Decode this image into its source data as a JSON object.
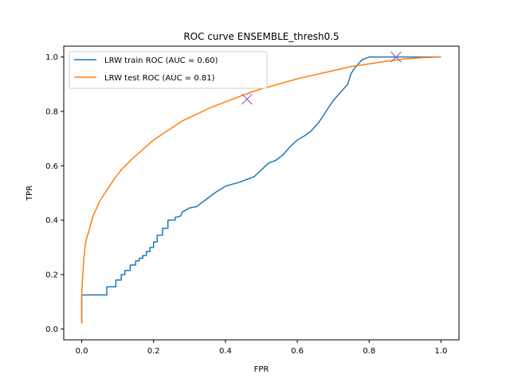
{
  "chart_data": {
    "type": "line",
    "title": "ROC curve ENSEMBLE_thresh0.5",
    "xlabel": "FPR",
    "ylabel": "TPR",
    "xlim": [
      -0.05,
      1.05
    ],
    "ylim": [
      -0.04,
      1.04
    ],
    "xticks": [
      0.0,
      0.2,
      0.4,
      0.6,
      0.8,
      1.0
    ],
    "yticks": [
      0.0,
      0.2,
      0.4,
      0.6,
      0.8,
      1.0
    ],
    "xtick_labels": [
      "0.0",
      "0.2",
      "0.4",
      "0.6",
      "0.8",
      "1.0"
    ],
    "ytick_labels": [
      "0.0",
      "0.2",
      "0.4",
      "0.6",
      "0.8",
      "1.0"
    ],
    "grid": false,
    "legend_position": "upper-left",
    "series": [
      {
        "name": "LRW train ROC (AUC = 0.60)",
        "color": "#1f77b4",
        "x": [
          0,
          0,
          0.07,
          0.07,
          0.095,
          0.095,
          0.11,
          0.11,
          0.12,
          0.12,
          0.135,
          0.135,
          0.15,
          0.15,
          0.16,
          0.16,
          0.17,
          0.17,
          0.18,
          0.18,
          0.19,
          0.19,
          0.2,
          0.2,
          0.21,
          0.21,
          0.225,
          0.225,
          0.24,
          0.24,
          0.26,
          0.26,
          0.275,
          0.28,
          0.3,
          0.32,
          0.34,
          0.37,
          0.4,
          0.44,
          0.48,
          0.5,
          0.52,
          0.54,
          0.56,
          0.58,
          0.6,
          0.62,
          0.64,
          0.66,
          0.68,
          0.7,
          0.72,
          0.74,
          0.75,
          0.76,
          0.77,
          0.78,
          0.8,
          0.83,
          0.86,
          0.9,
          1.0
        ],
        "y": [
          0.02,
          0.125,
          0.125,
          0.155,
          0.155,
          0.18,
          0.18,
          0.2,
          0.2,
          0.215,
          0.215,
          0.235,
          0.235,
          0.25,
          0.25,
          0.26,
          0.26,
          0.27,
          0.27,
          0.285,
          0.285,
          0.3,
          0.3,
          0.32,
          0.32,
          0.345,
          0.345,
          0.37,
          0.37,
          0.4,
          0.4,
          0.41,
          0.415,
          0.43,
          0.445,
          0.45,
          0.47,
          0.5,
          0.525,
          0.54,
          0.56,
          0.585,
          0.61,
          0.62,
          0.64,
          0.67,
          0.695,
          0.71,
          0.73,
          0.76,
          0.8,
          0.84,
          0.87,
          0.9,
          0.94,
          0.96,
          0.975,
          0.99,
          1.0,
          1.0,
          1.0,
          1.0,
          1.0
        ]
      },
      {
        "name": "LRW test ROC (AUC = 0.81)",
        "color": "#ff7f0e",
        "x": [
          0,
          0,
          0.003,
          0.006,
          0.01,
          0.015,
          0.02,
          0.03,
          0.04,
          0.05,
          0.07,
          0.09,
          0.11,
          0.14,
          0.17,
          0.2,
          0.24,
          0.28,
          0.32,
          0.36,
          0.4,
          0.44,
          0.48,
          0.52,
          0.56,
          0.6,
          0.65,
          0.7,
          0.75,
          0.8,
          0.85,
          0.9,
          0.95,
          1.0
        ],
        "y": [
          0.02,
          0.13,
          0.2,
          0.26,
          0.31,
          0.34,
          0.36,
          0.41,
          0.44,
          0.47,
          0.51,
          0.55,
          0.585,
          0.625,
          0.66,
          0.695,
          0.73,
          0.765,
          0.79,
          0.815,
          0.835,
          0.855,
          0.875,
          0.89,
          0.905,
          0.92,
          0.935,
          0.95,
          0.965,
          0.975,
          0.985,
          0.993,
          0.998,
          1.0
        ]
      }
    ],
    "markers": [
      {
        "x": 0.46,
        "y": 0.845,
        "color": "#9467bd",
        "symbol": "x"
      },
      {
        "x": 0.875,
        "y": 1.0,
        "color": "#9467bd",
        "symbol": "x"
      }
    ]
  }
}
